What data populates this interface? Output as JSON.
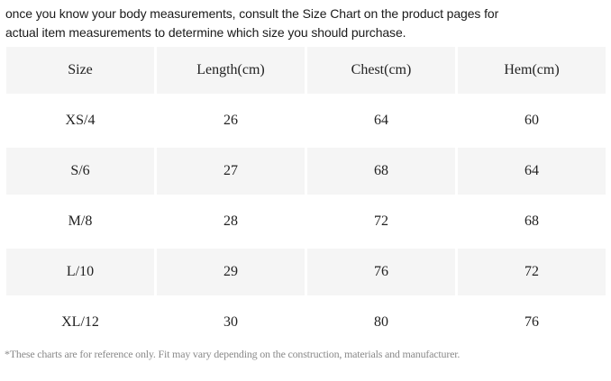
{
  "intro": {
    "line1": "once you know your body measurements,  consult the Size  Chart  on the  product pages for",
    "line2": "actual item measurements  to determine  which  size you should purchase."
  },
  "table": {
    "headers": [
      "Size",
      "Length(cm)",
      "Chest(cm)",
      "Hem(cm)"
    ],
    "rows": [
      [
        "XS/4",
        "26",
        "64",
        "60"
      ],
      [
        "S/6",
        "27",
        "68",
        "64"
      ],
      [
        "M/8",
        "28",
        "72",
        "68"
      ],
      [
        "L/10",
        "29",
        "76",
        "72"
      ],
      [
        "XL/12",
        "30",
        "80",
        "76"
      ]
    ]
  },
  "footnote": "*These charts are for reference only.  Fit may vary depending on the construction, materials and manufacturer.",
  "colors": {
    "shaded_row": "#f5f5f5",
    "text": "#222222",
    "footnote": "#8a8a8a"
  }
}
